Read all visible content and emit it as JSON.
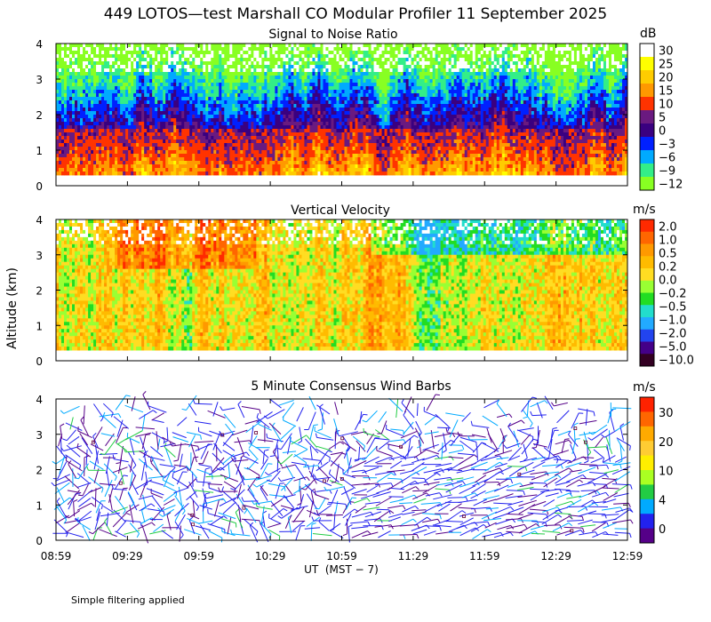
{
  "chart_data": {
    "title": "449 LOTOS—test Marshall CO Modular Profiler 11 September 2025",
    "xlabel": "UT  (MST − 7)",
    "ylabel": "Altitude (km)",
    "footnote": "Simple filtering applied",
    "x_ticks": [
      "08:59",
      "09:29",
      "09:59",
      "10:29",
      "10:59",
      "11:29",
      "11:59",
      "12:29",
      "12:59"
    ],
    "y_ticks": [
      "0",
      "1",
      "2",
      "3",
      "4"
    ],
    "panels": [
      {
        "type": "heatmap",
        "title": "Signal to Noise Ratio",
        "unit": "dB",
        "ylim": [
          0,
          4
        ],
        "colorbar": {
          "labels": [
            "30",
            "25",
            "20",
            "15",
            "10",
            "5",
            "0",
            "−3",
            "−6",
            "−9",
            "−12"
          ],
          "colors": [
            "#ffffff",
            "#ffff00",
            "#ffcc00",
            "#ff9900",
            "#ff3300",
            "#6a1a80",
            "#3a0080",
            "#0020ff",
            "#00aaff",
            "#33ee88",
            "#88ff22"
          ]
        }
      },
      {
        "type": "heatmap",
        "title": "Vertical Velocity",
        "unit": "m/s",
        "ylim": [
          0,
          4
        ],
        "colorbar": {
          "labels": [
            "2.0",
            "1.0",
            "0.5",
            "0.2",
            "0.0",
            "−0.2",
            "−0.5",
            "−1.0",
            "−2.0",
            "−5.0",
            "−10.0"
          ],
          "colors": [
            "#ff2a00",
            "#ff6600",
            "#ff9900",
            "#ffbb00",
            "#ffdd22",
            "#99ff33",
            "#22dd22",
            "#22ddcc",
            "#22aaff",
            "#2244ee",
            "#440088",
            "#330022"
          ]
        }
      },
      {
        "type": "scatter",
        "title": "5 Minute Consensus Wind Barbs",
        "unit": "m/s",
        "ylim": [
          0,
          4
        ],
        "colorbar": {
          "labels": [
            "30",
            "20",
            "10",
            "4",
            "0"
          ],
          "colors": [
            "#ff2200",
            "#ff6600",
            "#ffaa00",
            "#ffcc33",
            "#ffee00",
            "#aaff22",
            "#22cc44",
            "#00aaff",
            "#2222ee",
            "#550088"
          ]
        }
      }
    ]
  }
}
